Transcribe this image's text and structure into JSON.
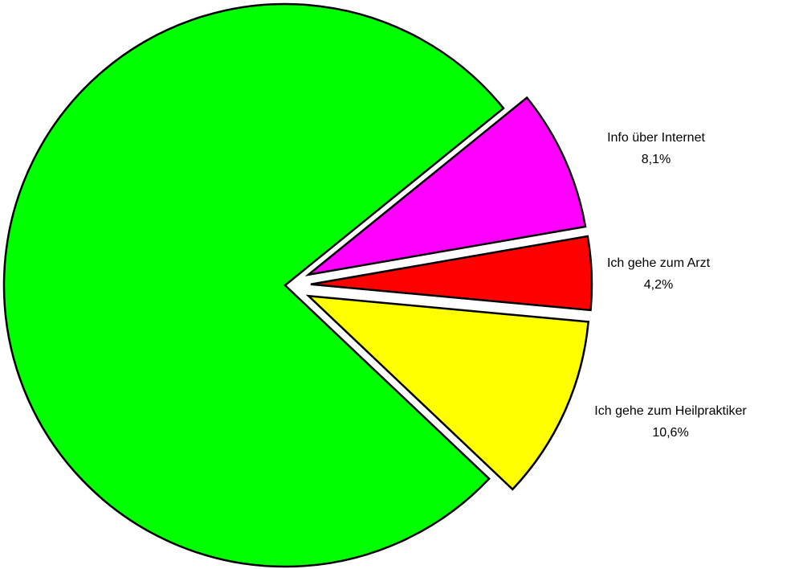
{
  "chart_data": {
    "type": "pie",
    "categories": [
      "Info über Internet",
      "Ich gehe zum Arzt",
      "Ich gehe zum Heilpraktiker",
      null
    ],
    "values": [
      8.1,
      4.2,
      10.6,
      77.1
    ],
    "value_labels": [
      "8,1%",
      "4,2%",
      "10,6%",
      null
    ],
    "colors": [
      "#ff00ff",
      "#ff0000",
      "#ffff00",
      "#00ff00"
    ],
    "start_angle": -39,
    "exploded": [
      true,
      true,
      true,
      false
    ]
  }
}
